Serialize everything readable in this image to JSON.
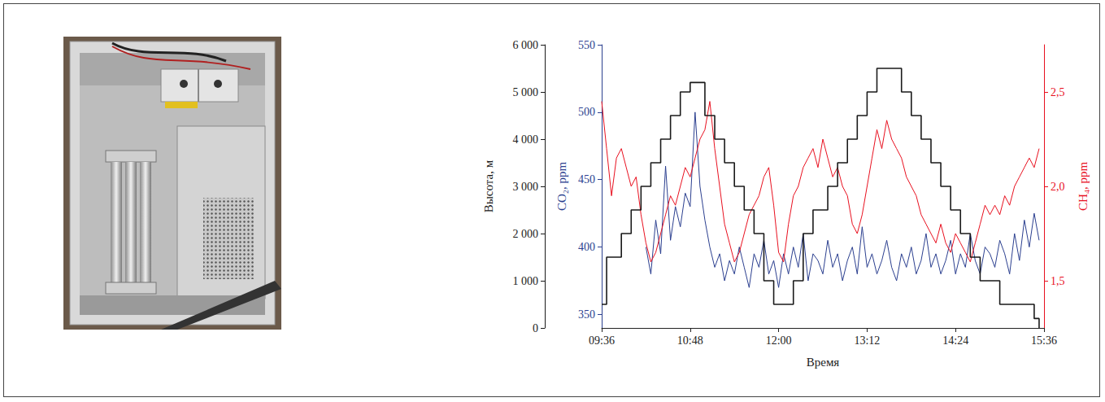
{
  "chart_data": {
    "type": "line",
    "x_label": "Время",
    "y_label": "Высота, м",
    "y2_label": "CO₂, ppm",
    "y3_label": "CH₄, ppm",
    "grid": false,
    "xlim": [
      576,
      936
    ],
    "xticks": [
      {
        "value": 576,
        "label": "09:36"
      },
      {
        "value": 648,
        "label": "10:48"
      },
      {
        "value": 720,
        "label": "12:00"
      },
      {
        "value": 792,
        "label": "13:12"
      },
      {
        "value": 864,
        "label": "14:24"
      },
      {
        "value": 936,
        "label": "15:36"
      }
    ],
    "ylim": [
      0,
      6000
    ],
    "yticks": [
      0,
      {
        "value": 1000,
        "label": "1 000"
      },
      {
        "value": 2000,
        "label": "2 000"
      },
      {
        "value": 3000,
        "label": "3 000"
      },
      {
        "value": 4000,
        "label": "4 000"
      },
      {
        "value": 5000,
        "label": "5 000"
      },
      {
        "value": 6000,
        "label": "6 000"
      }
    ],
    "y2lim": [
      340,
      550
    ],
    "y2ticks": [
      350,
      400,
      450,
      500,
      550
    ],
    "y3lim": [
      1.25,
      2.75
    ],
    "y3ticks": [
      {
        "value": 1.5,
        "label": "1,5"
      },
      {
        "value": 2.0,
        "label": "2,0"
      },
      {
        "value": 2.5,
        "label": "2,5"
      }
    ],
    "x": [
      576,
      580,
      584,
      588,
      592,
      596,
      600,
      604,
      608,
      612,
      616,
      620,
      624,
      628,
      632,
      636,
      640,
      644,
      648,
      652,
      656,
      660,
      664,
      668,
      672,
      676,
      680,
      684,
      688,
      692,
      696,
      700,
      704,
      708,
      712,
      716,
      720,
      724,
      728,
      732,
      736,
      740,
      744,
      748,
      752,
      756,
      760,
      764,
      768,
      772,
      776,
      780,
      784,
      788,
      792,
      796,
      800,
      804,
      808,
      812,
      816,
      820,
      824,
      828,
      832,
      836,
      840,
      844,
      848,
      852,
      856,
      860,
      864,
      868,
      872,
      876,
      880,
      884,
      888,
      892,
      896,
      900,
      904,
      908,
      912,
      916,
      920,
      924,
      928,
      932
    ],
    "series": [
      {
        "color": "#1a1a1a",
        "axis": "y",
        "line_style": "step",
        "values": [
          500,
          1500,
          1500,
          1500,
          2000,
          2000,
          2500,
          2500,
          3000,
          3000,
          3500,
          3500,
          4000,
          4000,
          4500,
          4500,
          5000,
          5000,
          5200,
          5200,
          5200,
          4500,
          4500,
          4000,
          4000,
          3500,
          3500,
          3000,
          3000,
          2500,
          2500,
          2000,
          2000,
          1000,
          1000,
          500,
          500,
          500,
          500,
          1000,
          1000,
          2000,
          2000,
          2500,
          2500,
          2500,
          3000,
          3000,
          3500,
          3500,
          4000,
          4000,
          4500,
          4500,
          5000,
          5000,
          5500,
          5500,
          5500,
          5500,
          5500,
          5000,
          5000,
          4500,
          4500,
          4000,
          4000,
          3500,
          3500,
          3000,
          3000,
          2500,
          2500,
          2000,
          2000,
          1500,
          1500,
          1000,
          1000,
          1000,
          1000,
          500,
          500,
          500,
          500,
          500,
          500,
          500,
          200,
          0
        ]
      },
      {
        "color": "#2b3f8f",
        "axis": "y2",
        "line_style": "solid",
        "values": [
          null,
          null,
          null,
          null,
          null,
          null,
          null,
          null,
          null,
          400,
          380,
          420,
          395,
          460,
          405,
          430,
          415,
          440,
          430,
          500,
          445,
          420,
          400,
          385,
          395,
          375,
          390,
          380,
          400,
          385,
          370,
          395,
          385,
          405,
          380,
          390,
          370,
          395,
          380,
          400,
          385,
          410,
          375,
          395,
          390,
          380,
          405,
          385,
          395,
          375,
          390,
          400,
          380,
          415,
          385,
          395,
          380,
          390,
          405,
          385,
          375,
          395,
          385,
          400,
          380,
          390,
          410,
          385,
          395,
          380,
          390,
          405,
          380,
          395,
          385,
          410,
          390,
          380,
          400,
          395,
          385,
          405,
          395,
          380,
          410,
          390,
          420,
          400,
          425,
          405
        ]
      },
      {
        "color": "#e8101f",
        "axis": "y3",
        "line_style": "solid",
        "values": [
          2.45,
          2.2,
          1.95,
          2.15,
          2.2,
          2.1,
          2.0,
          2.05,
          1.85,
          1.7,
          1.6,
          1.65,
          1.75,
          1.85,
          1.95,
          1.9,
          2.0,
          2.1,
          2.05,
          2.15,
          2.25,
          2.3,
          2.45,
          2.2,
          2.0,
          1.8,
          1.7,
          1.6,
          1.65,
          1.75,
          1.85,
          1.9,
          1.95,
          2.05,
          2.1,
          1.9,
          1.65,
          1.6,
          1.8,
          1.95,
          2.0,
          2.1,
          2.15,
          2.2,
          2.1,
          2.25,
          2.15,
          2.05,
          2.1,
          2.0,
          1.95,
          1.8,
          1.75,
          1.85,
          2.0,
          2.15,
          2.3,
          2.2,
          2.35,
          2.25,
          2.2,
          2.15,
          2.05,
          2.0,
          1.95,
          1.85,
          1.8,
          1.75,
          1.7,
          1.8,
          1.7,
          1.65,
          1.75,
          1.7,
          1.65,
          1.6,
          1.7,
          1.8,
          1.9,
          1.85,
          1.9,
          1.85,
          1.95,
          1.9,
          2.0,
          2.05,
          2.1,
          2.15,
          2.1,
          2.2
        ]
      }
    ]
  }
}
